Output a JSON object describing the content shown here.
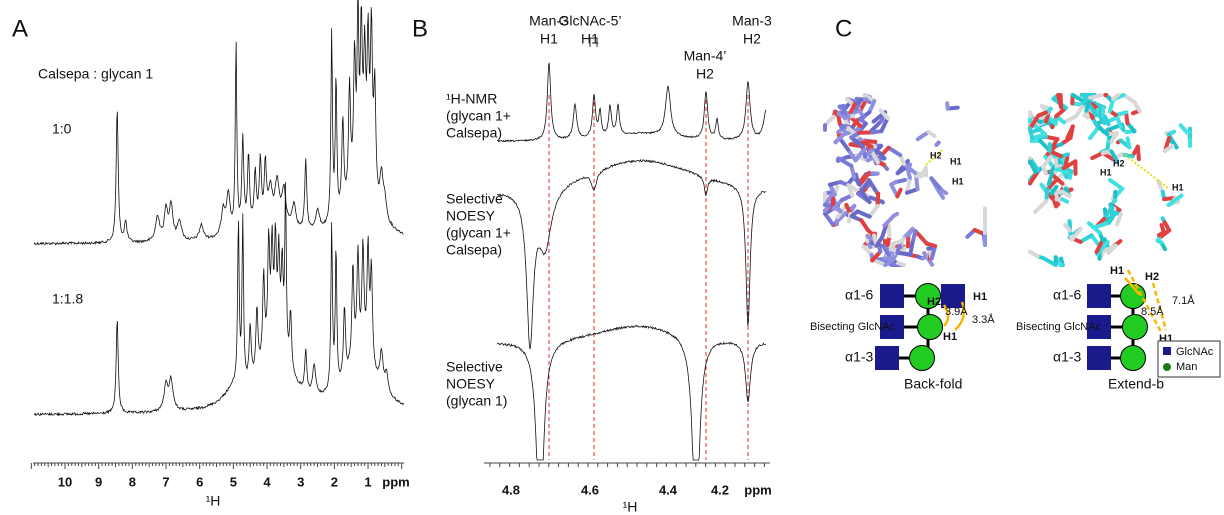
{
  "panel_a": {
    "label": "A",
    "legend_title": "Calsepa : glycan 1",
    "traces": [
      "1:0",
      "1:1.8"
    ],
    "ticks": [
      10,
      9,
      8,
      7,
      6,
      5,
      4,
      3,
      2,
      1
    ],
    "unit": "ppm",
    "axis_label": "¹H"
  },
  "panel_b": {
    "label": "B",
    "peaks": [
      {
        "lines": [
          "Man-3",
          "H1"
        ]
      },
      {
        "lines": [
          "GlcNAc-5’",
          "H1"
        ]
      },
      {
        "lines": [
          "Man-4’",
          "H2"
        ]
      },
      {
        "lines": [
          "Man-3",
          "H2"
        ]
      }
    ],
    "traces": [
      {
        "lines": [
          "¹H-NMR",
          "(glycan 1+",
          "Calsepa)"
        ]
      },
      {
        "lines": [
          "Selective",
          "NOESY",
          "(glycan 1+",
          "Calsepa)"
        ]
      },
      {
        "lines": [
          "Selective",
          "NOESY",
          "(glycan 1)"
        ]
      }
    ],
    "ticks": [
      4.8,
      4.6,
      4.4,
      4.2
    ],
    "unit": "ppm",
    "axis_label": "¹H"
  },
  "panel_c": {
    "label": "C",
    "model_left_atoms": [
      "H2",
      "H1",
      "H1"
    ],
    "model_right_atoms": [
      "H2",
      "H1",
      "H1"
    ],
    "back_fold": {
      "linkage_top": "α1-6",
      "bisecting": "Bisecting GlcNAc",
      "linkage_bottom": "α1-3",
      "atoms": [
        "H2",
        "H1",
        "H1"
      ],
      "distances": [
        "3.9Å",
        "3.3Å"
      ],
      "name": "Back-fold"
    },
    "extend_b": {
      "linkage_top": "α1-6",
      "bisecting": "Bisecting GlcNAc",
      "linkage_bottom": "α1-3",
      "atoms": [
        "H1",
        "H2",
        "H1"
      ],
      "distances": [
        "8.5Å",
        "7.1Å"
      ],
      "name": "Extend-b"
    },
    "legend": [
      "GlcNAc",
      "Man"
    ]
  }
}
